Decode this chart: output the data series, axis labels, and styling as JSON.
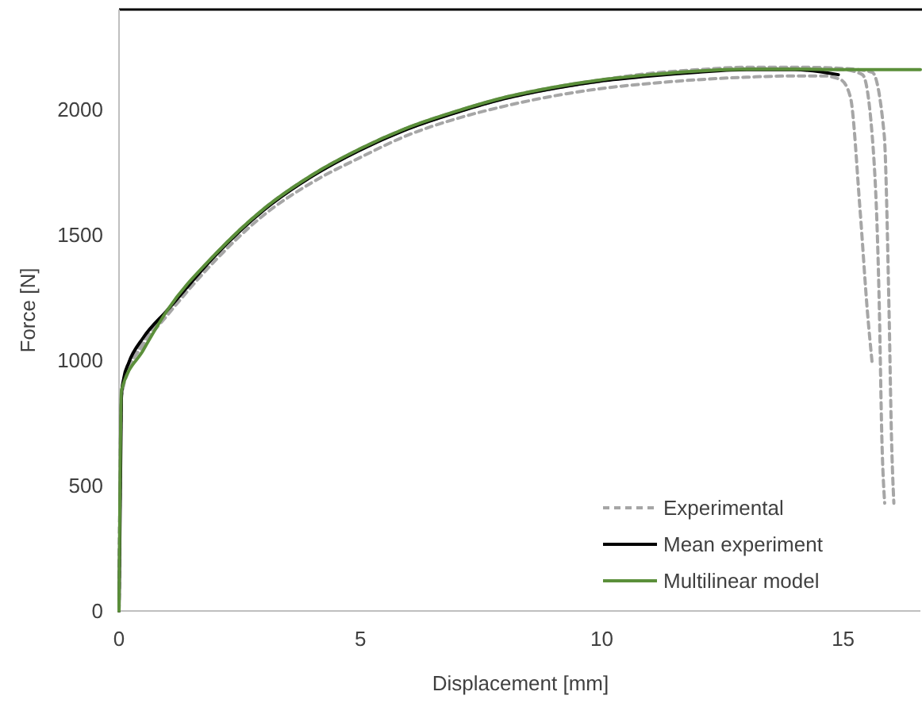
{
  "chart_data": {
    "type": "line",
    "xlabel": "Displacement [mm]",
    "ylabel": "Force [N]",
    "xlim": [
      0,
      16.6
    ],
    "ylim": [
      0,
      2400
    ],
    "xticks": [
      0,
      5,
      10,
      15
    ],
    "yticks": [
      0,
      500,
      1000,
      1500,
      2000
    ],
    "grid": false,
    "legend": "bottom right",
    "series": [
      {
        "name": "Experimental",
        "color": "#a6a6a6",
        "line_style": "dashed",
        "x": [
          0,
          0.05,
          0.2,
          0.5,
          1,
          2,
          3,
          4,
          5,
          6,
          7,
          8,
          9,
          10,
          11,
          12,
          13,
          14,
          14.6,
          14.95,
          15.15,
          15.35,
          15.5,
          15.6
        ],
        "values": [
          0,
          850,
          960,
          1060,
          1180,
          1400,
          1580,
          1710,
          1810,
          1900,
          1965,
          2015,
          2055,
          2085,
          2105,
          2120,
          2130,
          2135,
          2135,
          2120,
          2050,
          1600,
          1200,
          990
        ]
      },
      {
        "color": "#a6a6a6",
        "line_style": "dashed",
        "x": [
          0,
          0.05,
          0.2,
          0.5,
          1,
          2,
          3,
          4,
          5,
          6,
          7,
          8,
          9,
          10,
          11,
          12,
          13,
          14,
          15,
          15.4,
          15.6,
          15.75,
          15.8,
          15.86
        ],
        "values": [
          0,
          860,
          970,
          1075,
          1195,
          1420,
          1600,
          1735,
          1840,
          1925,
          1990,
          2045,
          2085,
          2115,
          2140,
          2155,
          2165,
          2165,
          2160,
          2140,
          1900,
          1200,
          700,
          430
        ]
      },
      {
        "color": "#a6a6a6",
        "line_style": "dashed",
        "x": [
          0,
          0.05,
          0.2,
          0.5,
          1,
          2,
          3,
          4,
          5,
          6,
          7,
          8,
          9,
          10,
          11,
          12,
          13,
          14,
          15,
          15.6,
          15.85,
          15.95,
          16,
          16.05
        ],
        "values": [
          0,
          870,
          975,
          1080,
          1200,
          1425,
          1605,
          1740,
          1845,
          1930,
          1995,
          2050,
          2090,
          2120,
          2145,
          2160,
          2170,
          2170,
          2165,
          2150,
          1900,
          1200,
          700,
          430
        ]
      },
      {
        "name": "Mean experiment",
        "color": "#000000",
        "line_style": "solid",
        "x": [
          0,
          0.05,
          0.1,
          0.2,
          0.5,
          1,
          2,
          3,
          4,
          5,
          6,
          7,
          8,
          9,
          10,
          11,
          12,
          13,
          14,
          14.9
        ],
        "values": [
          0,
          860,
          930,
          990,
          1090,
          1200,
          1420,
          1600,
          1735,
          1840,
          1925,
          1990,
          2045,
          2085,
          2115,
          2135,
          2150,
          2160,
          2160,
          2140
        ]
      },
      {
        "name": "Multilinear model",
        "color": "#5b8f3a",
        "line_style": "solid",
        "x": [
          0,
          0.05,
          0.5,
          1,
          2,
          3,
          4,
          5,
          6,
          7,
          8,
          9,
          10,
          11,
          12,
          13,
          14,
          15,
          16.6
        ],
        "values": [
          0,
          880,
          1040,
          1200,
          1425,
          1605,
          1740,
          1845,
          1930,
          1995,
          2050,
          2090,
          2120,
          2140,
          2155,
          2162,
          2162,
          2160,
          2160
        ]
      }
    ]
  }
}
